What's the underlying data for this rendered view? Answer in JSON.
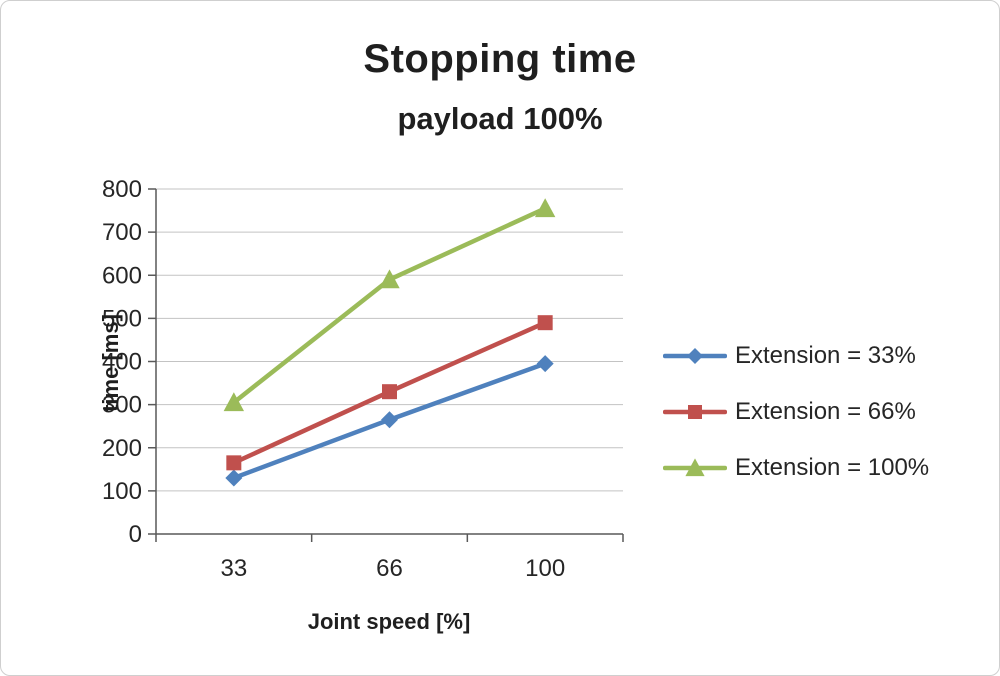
{
  "chart_data": {
    "type": "line",
    "title": "Stopping time",
    "subtitle": "payload 100%",
    "xlabel": "Joint speed [%]",
    "ylabel": "time [ms]",
    "categories": [
      "33",
      "66",
      "100"
    ],
    "series": [
      {
        "name": "Extension = 33%",
        "color": "#4F81BD",
        "marker": "diamond",
        "values": [
          130,
          265,
          395
        ]
      },
      {
        "name": "Extension = 66%",
        "color": "#C0504D",
        "marker": "square",
        "values": [
          165,
          330,
          490
        ]
      },
      {
        "name": "Extension = 100%",
        "color": "#9BBB59",
        "marker": "triangle",
        "values": [
          305,
          590,
          755
        ]
      }
    ],
    "ylim": [
      0,
      800
    ],
    "ytick_step": 100,
    "grid": true,
    "legend_position": "right"
  },
  "colors": {
    "axis": "#595959",
    "gridline": "#C3C3C3",
    "tick_label": "#262626",
    "frame_border": "#cfcfcf"
  }
}
